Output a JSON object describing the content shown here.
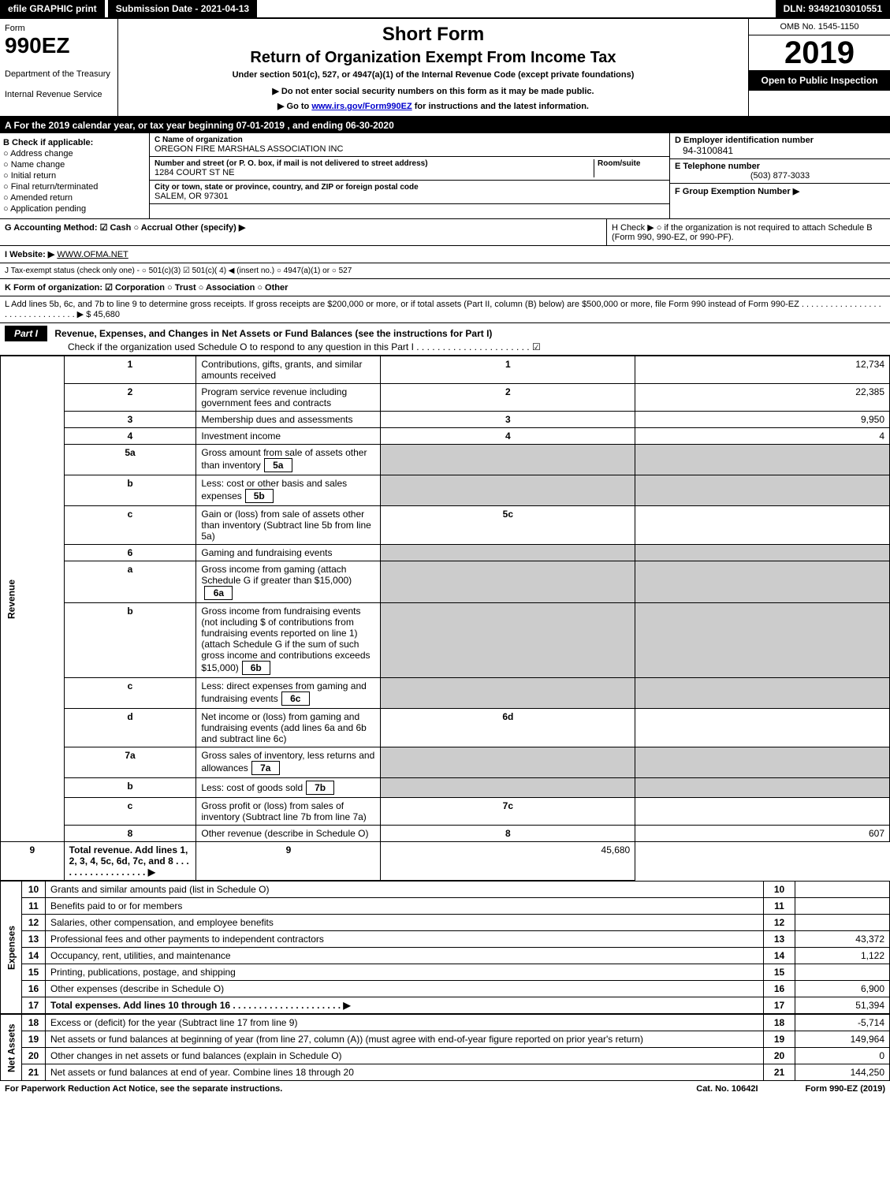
{
  "topbar": {
    "efile": "efile GRAPHIC print",
    "submission": "Submission Date - 2021-04-13",
    "dln": "DLN: 93492103010551"
  },
  "header": {
    "form_label": "Form",
    "form_number": "990EZ",
    "dept": "Department of the Treasury",
    "irs": "Internal Revenue Service",
    "short_form": "Short Form",
    "return_title": "Return of Organization Exempt From Income Tax",
    "subtitle": "Under section 501(c), 527, or 4947(a)(1) of the Internal Revenue Code (except private foundations)",
    "notice1": "▶ Do not enter social security numbers on this form as it may be made public.",
    "notice2_pre": "▶ Go to ",
    "notice2_link": "www.irs.gov/Form990EZ",
    "notice2_post": " for instructions and the latest information.",
    "omb": "OMB No. 1545-1150",
    "year": "2019",
    "open": "Open to Public Inspection"
  },
  "line_a": "A For the 2019 calendar year, or tax year beginning 07-01-2019 , and ending 06-30-2020",
  "section_b": {
    "title": "B Check if applicable:",
    "opts": [
      "○ Address change",
      "○ Name change",
      "○ Initial return",
      "○ Final return/terminated",
      "○ Amended return",
      "○ Application pending"
    ]
  },
  "section_c": {
    "name_label": "C Name of organization",
    "name": "OREGON FIRE MARSHALS ASSOCIATION INC",
    "addr_label": "Number and street (or P. O. box, if mail is not delivered to street address)",
    "room_label": "Room/suite",
    "addr": "1284 COURT ST NE",
    "city_label": "City or town, state or province, country, and ZIP or foreign postal code",
    "city": "SALEM, OR  97301"
  },
  "section_d": {
    "ein_label": "D Employer identification number",
    "ein": "94-3100841",
    "tel_label": "E Telephone number",
    "tel": "(503) 877-3033",
    "group_label": "F Group Exemption Number  ▶"
  },
  "line_g": "G Accounting Method:  ☑ Cash  ○ Accrual  Other (specify) ▶",
  "line_h": "H  Check ▶  ○  if the organization is not required to attach Schedule B (Form 990, 990-EZ, or 990-PF).",
  "line_i_pre": "I Website: ▶",
  "line_i": "WWW.OFMA.NET",
  "line_j": "J Tax-exempt status (check only one) -  ○ 501(c)(3)  ☑  501(c)( 4) ◀ (insert no.)  ○ 4947(a)(1) or  ○ 527",
  "line_k": "K Form of organization:  ☑ Corporation  ○ Trust  ○ Association  ○ Other",
  "line_l": "L Add lines 5b, 6c, and 7b to line 9 to determine gross receipts. If gross receipts are $200,000 or more, or if total assets (Part II, column (B) below) are $500,000 or more, file Form 990 instead of Form 990-EZ . . . . . . . . . . . . . . . . . . . . . . . . . . . . . . . . ▶ $ 45,680",
  "part1": {
    "label": "Part I",
    "title": "Revenue, Expenses, and Changes in Net Assets or Fund Balances (see the instructions for Part I)",
    "check": "Check if the organization used Schedule O to respond to any question in this Part I . . . . . . . . . . . . . . . . . . . . . . ☑"
  },
  "vert": {
    "revenue": "Revenue",
    "expenses": "Expenses",
    "net_assets": "Net Assets"
  },
  "rows": [
    {
      "n": "1",
      "d": "Contributions, gifts, grants, and similar amounts received",
      "r": "1",
      "a": "12,734"
    },
    {
      "n": "2",
      "d": "Program service revenue including government fees and contracts",
      "r": "2",
      "a": "22,385"
    },
    {
      "n": "3",
      "d": "Membership dues and assessments",
      "r": "3",
      "a": "9,950"
    },
    {
      "n": "4",
      "d": "Investment income",
      "r": "4",
      "a": "4"
    },
    {
      "n": "5a",
      "d": "Gross amount from sale of assets other than inventory",
      "box": "5a",
      "shade": true
    },
    {
      "n": "b",
      "d": "Less: cost or other basis and sales expenses",
      "box": "5b",
      "shade": true
    },
    {
      "n": "c",
      "d": "Gain or (loss) from sale of assets other than inventory (Subtract line 5b from line 5a)",
      "r": "5c",
      "a": ""
    },
    {
      "n": "6",
      "d": "Gaming and fundraising events",
      "shade": true
    },
    {
      "n": "a",
      "d": "Gross income from gaming (attach Schedule G if greater than $15,000)",
      "box": "6a",
      "shade": true
    },
    {
      "n": "b",
      "d": "Gross income from fundraising events (not including $                           of contributions from fundraising events reported on line 1) (attach Schedule G if the sum of such gross income and contributions exceeds $15,000)",
      "box": "6b",
      "shade": true
    },
    {
      "n": "c",
      "d": "Less: direct expenses from gaming and fundraising events",
      "box": "6c",
      "shade": true
    },
    {
      "n": "d",
      "d": "Net income or (loss) from gaming and fundraising events (add lines 6a and 6b and subtract line 6c)",
      "r": "6d",
      "a": ""
    },
    {
      "n": "7a",
      "d": "Gross sales of inventory, less returns and allowances",
      "box": "7a",
      "shade": true
    },
    {
      "n": "b",
      "d": "Less: cost of goods sold",
      "box": "7b",
      "shade": true
    },
    {
      "n": "c",
      "d": "Gross profit or (loss) from sales of inventory (Subtract line 7b from line 7a)",
      "r": "7c",
      "a": ""
    },
    {
      "n": "8",
      "d": "Other revenue (describe in Schedule O)",
      "r": "8",
      "a": "607"
    },
    {
      "n": "9",
      "d": "Total revenue. Add lines 1, 2, 3, 4, 5c, 6d, 7c, and 8  . . . . . . . . . . . . . . . . . . ▶",
      "r": "9",
      "a": "45,680",
      "bold": true
    }
  ],
  "rows_exp": [
    {
      "n": "10",
      "d": "Grants and similar amounts paid (list in Schedule O)",
      "r": "10",
      "a": ""
    },
    {
      "n": "11",
      "d": "Benefits paid to or for members",
      "r": "11",
      "a": ""
    },
    {
      "n": "12",
      "d": "Salaries, other compensation, and employee benefits",
      "r": "12",
      "a": ""
    },
    {
      "n": "13",
      "d": "Professional fees and other payments to independent contractors",
      "r": "13",
      "a": "43,372"
    },
    {
      "n": "14",
      "d": "Occupancy, rent, utilities, and maintenance",
      "r": "14",
      "a": "1,122"
    },
    {
      "n": "15",
      "d": "Printing, publications, postage, and shipping",
      "r": "15",
      "a": ""
    },
    {
      "n": "16",
      "d": "Other expenses (describe in Schedule O)",
      "r": "16",
      "a": "6,900"
    },
    {
      "n": "17",
      "d": "Total expenses. Add lines 10 through 16    . . . . . . . . . . . . . . . . . . . . . ▶",
      "r": "17",
      "a": "51,394",
      "bold": true
    }
  ],
  "rows_net": [
    {
      "n": "18",
      "d": "Excess or (deficit) for the year (Subtract line 17 from line 9)",
      "r": "18",
      "a": "-5,714"
    },
    {
      "n": "19",
      "d": "Net assets or fund balances at beginning of year (from line 27, column (A)) (must agree with end-of-year figure reported on prior year's return)",
      "r": "19",
      "a": "149,964"
    },
    {
      "n": "20",
      "d": "Other changes in net assets or fund balances (explain in Schedule O)",
      "r": "20",
      "a": "0"
    },
    {
      "n": "21",
      "d": "Net assets or fund balances at end of year. Combine lines 18 through 20",
      "r": "21",
      "a": "144,250"
    }
  ],
  "footer": {
    "left": "For Paperwork Reduction Act Notice, see the separate instructions.",
    "mid": "Cat. No. 10642I",
    "right": "Form 990-EZ (2019)"
  }
}
